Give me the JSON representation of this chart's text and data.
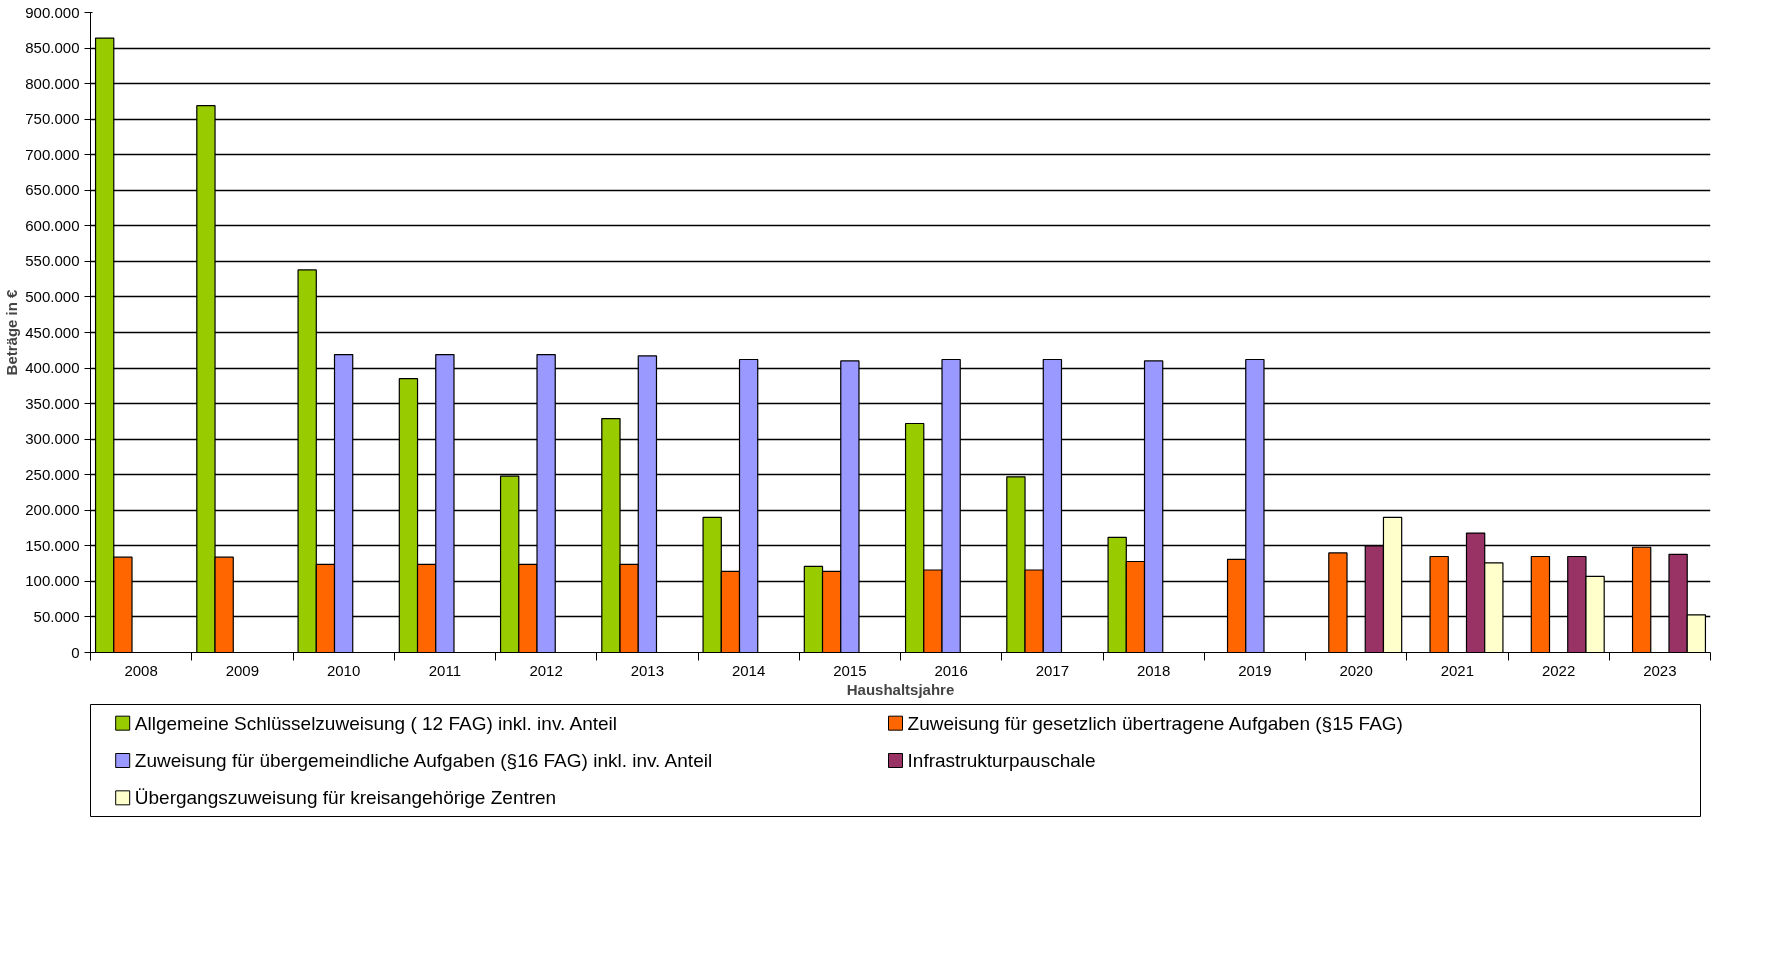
{
  "chart_data": {
    "type": "bar",
    "xlabel": "Haushaltsjahre",
    "ylabel": "Beträge in €",
    "categories": [
      "2008",
      "2009",
      "2010",
      "2011",
      "2012",
      "2013",
      "2014",
      "2015",
      "2016",
      "2017",
      "2018",
      "2019",
      "2020",
      "2021",
      "2022",
      "2023"
    ],
    "series": [
      {
        "name": "Allgemeine Schlüsselzuweisung ( 12 FAG) inkl. inv. Anteil",
        "color": "#99cc00",
        "values": [
          864000,
          769000,
          538000,
          385000,
          248000,
          329000,
          190000,
          121000,
          322000,
          247000,
          162000,
          null,
          null,
          null,
          null,
          null
        ]
      },
      {
        "name": "Zuweisung für gesetzlich übertragene Aufgaben (§15 FAG)",
        "color": "#ff6600",
        "values": [
          134000,
          134000,
          124000,
          124000,
          124000,
          124000,
          114000,
          114000,
          116000,
          116000,
          128000,
          131000,
          140000,
          135000,
          135000,
          148000
        ]
      },
      {
        "name": "Zuweisung für übergemeindliche Aufgaben (§16 FAG) inkl. inv. Anteil",
        "color": "#9999ff",
        "values": [
          null,
          null,
          419000,
          419000,
          419000,
          417000,
          412000,
          410000,
          412000,
          412000,
          410000,
          412000,
          null,
          null,
          null,
          null
        ]
      },
      {
        "name": "Infrastrukturpauschale",
        "color": "#993366",
        "values": [
          null,
          null,
          null,
          null,
          null,
          null,
          null,
          null,
          null,
          null,
          null,
          null,
          150000,
          168000,
          135000,
          138000
        ]
      },
      {
        "name": "Übergangszuweisung für kreisangehörige Zentren",
        "color": "#ffffcc",
        "values": [
          null,
          null,
          null,
          null,
          null,
          null,
          null,
          null,
          null,
          null,
          null,
          null,
          190000,
          126000,
          107000,
          53000
        ]
      }
    ],
    "ylim": [
      0,
      900000
    ],
    "yticks": [
      {
        "value": 0,
        "label": "0"
      },
      {
        "value": 50000,
        "label": "50.000"
      },
      {
        "value": 100000,
        "label": "100.000"
      },
      {
        "value": 150000,
        "label": "150.000"
      },
      {
        "value": 200000,
        "label": "200.000"
      },
      {
        "value": 250000,
        "label": "250.000"
      },
      {
        "value": 300000,
        "label": "300.000"
      },
      {
        "value": 350000,
        "label": "350.000"
      },
      {
        "value": 400000,
        "label": "400.000"
      },
      {
        "value": 450000,
        "label": "450.000"
      },
      {
        "value": 500000,
        "label": "500.000"
      },
      {
        "value": 550000,
        "label": "550.000"
      },
      {
        "value": 600000,
        "label": "600.000"
      },
      {
        "value": 650000,
        "label": "650.000"
      },
      {
        "value": 700000,
        "label": "700.000"
      },
      {
        "value": 750000,
        "label": "750.000"
      },
      {
        "value": 800000,
        "label": "800.000"
      },
      {
        "value": 850000,
        "label": "850.000"
      },
      {
        "value": 900000,
        "label": "900.000"
      }
    ],
    "grid": "y",
    "legend": "bottom"
  }
}
